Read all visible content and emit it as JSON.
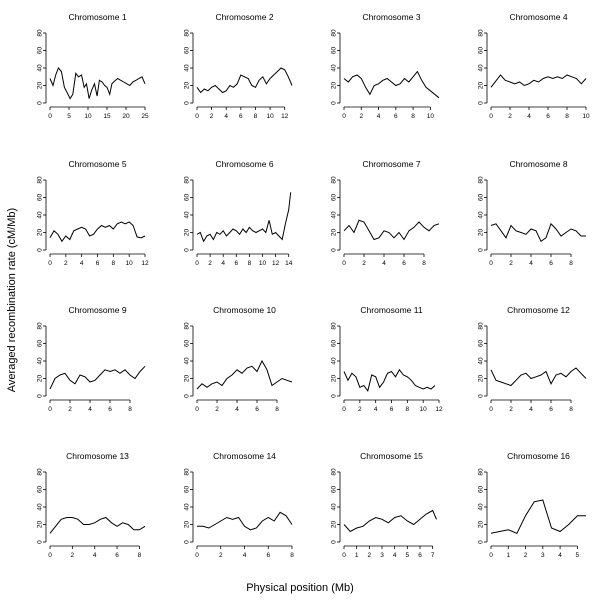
{
  "figure": {
    "xlabel": "Physical position (Mb)",
    "ylabel": "Averaged recombination rate (cM/Mb)"
  },
  "chart_data": [
    {
      "type": "line",
      "title": "Chromosome 1",
      "ylim": [
        0,
        80
      ],
      "yticks": [
        0,
        20,
        40,
        60,
        80
      ],
      "xlim": [
        0,
        25
      ],
      "xticks": [
        0,
        5,
        10,
        15,
        20,
        25
      ],
      "x": [
        0,
        0.8,
        1.5,
        2.2,
        3,
        3.8,
        4.5,
        5.3,
        6,
        6.8,
        7.5,
        8.3,
        9,
        9.6,
        10.3,
        11,
        11.7,
        12.4,
        13,
        13.7,
        14.4,
        15,
        15.7,
        16.3,
        17,
        17.8,
        18.6,
        19.4,
        20.2,
        21,
        21.8,
        22.6,
        23.4,
        24.2,
        25
      ],
      "y": [
        28,
        20,
        32,
        40,
        36,
        18,
        12,
        5,
        10,
        34,
        30,
        32,
        18,
        22,
        5,
        15,
        22,
        8,
        26,
        24,
        20,
        18,
        10,
        22,
        25,
        28,
        26,
        24,
        22,
        20,
        24,
        26,
        28,
        30,
        22
      ]
    },
    {
      "type": "line",
      "title": "Chromosome 2",
      "ylim": [
        0,
        80
      ],
      "yticks": [
        0,
        20,
        40,
        60,
        80
      ],
      "xlim": [
        0,
        13
      ],
      "xticks": [
        0,
        2,
        4,
        6,
        8,
        10,
        12
      ],
      "x": [
        0,
        0.5,
        1,
        1.5,
        2,
        2.5,
        3,
        3.5,
        4,
        4.5,
        5,
        5.5,
        6,
        6.5,
        7,
        7.5,
        8,
        8.5,
        9,
        9.5,
        10,
        10.5,
        11,
        11.5,
        12,
        12.5,
        13
      ],
      "y": [
        18,
        12,
        16,
        14,
        18,
        20,
        16,
        12,
        14,
        20,
        18,
        22,
        32,
        30,
        28,
        20,
        18,
        26,
        30,
        22,
        28,
        32,
        36,
        40,
        38,
        30,
        20
      ]
    },
    {
      "type": "line",
      "title": "Chromosome 3",
      "ylim": [
        0,
        80
      ],
      "yticks": [
        0,
        20,
        40,
        60,
        80
      ],
      "xlim": [
        0,
        11
      ],
      "xticks": [
        0,
        2,
        4,
        6,
        8,
        10
      ],
      "x": [
        0,
        0.5,
        1,
        1.5,
        2,
        2.5,
        3,
        3.5,
        4,
        4.5,
        5,
        5.5,
        6,
        6.5,
        7,
        7.5,
        8,
        8.5,
        9,
        9.5,
        10,
        10.5,
        11
      ],
      "y": [
        28,
        24,
        30,
        32,
        28,
        18,
        10,
        20,
        22,
        26,
        28,
        24,
        20,
        22,
        28,
        24,
        30,
        36,
        26,
        18,
        14,
        10,
        6
      ]
    },
    {
      "type": "line",
      "title": "Chromosome 4",
      "ylim": [
        0,
        80
      ],
      "yticks": [
        0,
        20,
        40,
        60,
        80
      ],
      "xlim": [
        0,
        10
      ],
      "xticks": [
        0,
        2,
        4,
        6,
        8,
        10
      ],
      "x": [
        0,
        0.5,
        1,
        1.5,
        2,
        2.5,
        3,
        3.5,
        4,
        4.5,
        5,
        5.5,
        6,
        6.5,
        7,
        7.5,
        8,
        8.5,
        9,
        9.5,
        10
      ],
      "y": [
        18,
        25,
        32,
        26,
        24,
        22,
        24,
        20,
        22,
        26,
        24,
        28,
        30,
        28,
        30,
        28,
        32,
        30,
        28,
        22,
        28
      ]
    },
    {
      "type": "line",
      "title": "Chromosome 5",
      "ylim": [
        0,
        80
      ],
      "yticks": [
        0,
        20,
        40,
        60,
        80
      ],
      "xlim": [
        0,
        12
      ],
      "xticks": [
        0,
        2,
        4,
        6,
        8,
        10,
        12
      ],
      "x": [
        0,
        0.5,
        1,
        1.5,
        2,
        2.5,
        3,
        3.5,
        4,
        4.5,
        5,
        5.5,
        6,
        6.5,
        7,
        7.5,
        8,
        8.5,
        9,
        9.5,
        10,
        10.5,
        11,
        11.5,
        12
      ],
      "y": [
        14,
        22,
        18,
        10,
        16,
        12,
        22,
        24,
        26,
        24,
        16,
        18,
        24,
        28,
        26,
        28,
        24,
        30,
        32,
        30,
        32,
        28,
        15,
        14,
        16
      ]
    },
    {
      "type": "line",
      "title": "Chromosome 6",
      "ylim": [
        0,
        80
      ],
      "yticks": [
        0,
        20,
        40,
        60,
        80
      ],
      "xlim": [
        0,
        14.5
      ],
      "xticks": [
        0,
        2,
        4,
        6,
        8,
        10,
        12,
        14
      ],
      "x": [
        0,
        0.5,
        1,
        1.5,
        2,
        2.5,
        3,
        3.5,
        4,
        4.5,
        5,
        5.5,
        6,
        6.5,
        7,
        7.5,
        8,
        8.5,
        9,
        9.5,
        10,
        10.5,
        11,
        11.5,
        12,
        12.5,
        13,
        13.5,
        14,
        14.3
      ],
      "y": [
        18,
        20,
        10,
        16,
        18,
        12,
        20,
        18,
        22,
        16,
        20,
        24,
        22,
        18,
        24,
        20,
        26,
        22,
        20,
        22,
        24,
        20,
        34,
        18,
        20,
        16,
        12,
        30,
        46,
        66
      ]
    },
    {
      "type": "line",
      "title": "Chromosome 7",
      "ylim": [
        0,
        80
      ],
      "yticks": [
        0,
        20,
        40,
        60,
        80
      ],
      "xlim": [
        0,
        9.5
      ],
      "xticks": [
        0,
        2,
        4,
        6,
        8
      ],
      "x": [
        0,
        0.5,
        1,
        1.5,
        2,
        2.5,
        3,
        3.5,
        4,
        4.5,
        5,
        5.5,
        6,
        6.5,
        7,
        7.5,
        8,
        8.5,
        9,
        9.5
      ],
      "y": [
        22,
        28,
        20,
        34,
        32,
        22,
        12,
        14,
        22,
        20,
        14,
        20,
        12,
        22,
        26,
        32,
        26,
        22,
        28,
        30
      ]
    },
    {
      "type": "line",
      "title": "Chromosome 8",
      "ylim": [
        0,
        80
      ],
      "yticks": [
        0,
        20,
        40,
        60,
        80
      ],
      "xlim": [
        0,
        9.5
      ],
      "xticks": [
        0,
        2,
        4,
        6,
        8
      ],
      "x": [
        0,
        0.5,
        1,
        1.5,
        2,
        2.5,
        3,
        3.5,
        4,
        4.5,
        5,
        5.5,
        6,
        6.5,
        7,
        7.5,
        8,
        8.5,
        9,
        9.5
      ],
      "y": [
        28,
        30,
        22,
        14,
        28,
        22,
        20,
        18,
        24,
        22,
        10,
        14,
        30,
        24,
        16,
        20,
        24,
        22,
        16,
        16
      ]
    },
    {
      "type": "line",
      "title": "Chromosome 9",
      "ylim": [
        0,
        80
      ],
      "yticks": [
        0,
        20,
        40,
        60,
        80
      ],
      "xlim": [
        0,
        9.5
      ],
      "xticks": [
        0,
        2,
        4,
        6,
        8
      ],
      "x": [
        0,
        0.5,
        1,
        1.5,
        2,
        2.5,
        3,
        3.5,
        4,
        4.5,
        5,
        5.5,
        6,
        6.5,
        7,
        7.5,
        8,
        8.5,
        9,
        9.5
      ],
      "y": [
        8,
        20,
        24,
        26,
        18,
        14,
        24,
        22,
        16,
        18,
        24,
        30,
        28,
        30,
        26,
        30,
        24,
        20,
        28,
        34
      ]
    },
    {
      "type": "line",
      "title": "Chromosome 10",
      "ylim": [
        0,
        80
      ],
      "yticks": [
        0,
        20,
        40,
        60,
        80
      ],
      "xlim": [
        0,
        9.5
      ],
      "xticks": [
        0,
        2,
        4,
        6,
        8
      ],
      "x": [
        0,
        0.5,
        1,
        1.5,
        2,
        2.5,
        3,
        3.5,
        4,
        4.5,
        5,
        5.5,
        6,
        6.5,
        7,
        7.5,
        8,
        8.5,
        9,
        9.5
      ],
      "y": [
        8,
        14,
        10,
        14,
        16,
        12,
        20,
        24,
        30,
        26,
        32,
        34,
        28,
        40,
        30,
        12,
        16,
        20,
        18,
        16
      ]
    },
    {
      "type": "line",
      "title": "Chromosome 11",
      "ylim": [
        0,
        80
      ],
      "yticks": [
        0,
        20,
        40,
        60,
        80
      ],
      "xlim": [
        0,
        12
      ],
      "xticks": [
        0,
        2,
        4,
        6,
        8,
        10,
        12
      ],
      "x": [
        0,
        0.5,
        1,
        1.5,
        2,
        2.5,
        3,
        3.5,
        4,
        4.5,
        5,
        5.5,
        6,
        6.5,
        7,
        7.5,
        8,
        8.5,
        9,
        9.5,
        10,
        10.5,
        11,
        11.5
      ],
      "y": [
        28,
        18,
        26,
        22,
        10,
        12,
        6,
        24,
        22,
        10,
        16,
        26,
        28,
        22,
        30,
        24,
        22,
        18,
        12,
        10,
        8,
        10,
        8,
        12
      ]
    },
    {
      "type": "line",
      "title": "Chromosome 12",
      "ylim": [
        0,
        80
      ],
      "yticks": [
        0,
        20,
        40,
        60,
        80
      ],
      "xlim": [
        0,
        9.5
      ],
      "xticks": [
        0,
        2,
        4,
        6,
        8
      ],
      "x": [
        0,
        0.5,
        1,
        1.5,
        2,
        2.5,
        3,
        3.5,
        4,
        4.5,
        5,
        5.5,
        6,
        6.5,
        7,
        7.5,
        8,
        8.5,
        9,
        9.5
      ],
      "y": [
        30,
        18,
        16,
        14,
        12,
        18,
        24,
        26,
        20,
        22,
        24,
        28,
        14,
        24,
        26,
        22,
        28,
        32,
        26,
        20
      ]
    },
    {
      "type": "line",
      "title": "Chromosome 13",
      "ylim": [
        0,
        80
      ],
      "yticks": [
        0,
        20,
        40,
        60,
        80
      ],
      "xlim": [
        0,
        8.5
      ],
      "xticks": [
        0,
        2,
        4,
        6,
        8
      ],
      "x": [
        0,
        0.5,
        1,
        1.5,
        2,
        2.5,
        3,
        3.5,
        4,
        4.5,
        5,
        5.5,
        6,
        6.5,
        7,
        7.5,
        8,
        8.5
      ],
      "y": [
        10,
        18,
        26,
        28,
        28,
        26,
        20,
        20,
        22,
        26,
        28,
        22,
        18,
        22,
        20,
        14,
        14,
        18
      ]
    },
    {
      "type": "line",
      "title": "Chromosome 14",
      "ylim": [
        0,
        80
      ],
      "yticks": [
        0,
        20,
        40,
        60,
        80
      ],
      "xlim": [
        0,
        8
      ],
      "xticks": [
        0,
        2,
        4,
        6,
        8
      ],
      "x": [
        0,
        0.5,
        1,
        1.5,
        2,
        2.5,
        3,
        3.5,
        4,
        4.5,
        5,
        5.5,
        6,
        6.5,
        7,
        7.5,
        8
      ],
      "y": [
        18,
        18,
        16,
        20,
        24,
        28,
        26,
        28,
        18,
        14,
        16,
        24,
        28,
        24,
        34,
        30,
        20
      ]
    },
    {
      "type": "line",
      "title": "Chromosome 15",
      "ylim": [
        0,
        80
      ],
      "yticks": [
        0,
        20,
        40,
        60,
        80
      ],
      "xlim": [
        0,
        7.5
      ],
      "xticks": [
        0,
        1,
        2,
        3,
        4,
        5,
        6,
        7
      ],
      "x": [
        0,
        0.5,
        1,
        1.5,
        2,
        2.5,
        3,
        3.5,
        4,
        4.5,
        5,
        5.5,
        6,
        6.5,
        7,
        7.3
      ],
      "y": [
        20,
        12,
        16,
        18,
        24,
        28,
        26,
        22,
        28,
        30,
        24,
        20,
        26,
        32,
        36,
        26
      ]
    },
    {
      "type": "line",
      "title": "Chromosome 16",
      "ylim": [
        0,
        80
      ],
      "yticks": [
        0,
        20,
        40,
        60,
        80
      ],
      "xlim": [
        0,
        5.5
      ],
      "xticks": [
        0,
        1,
        2,
        3,
        4,
        5
      ],
      "x": [
        0,
        0.5,
        1,
        1.5,
        2,
        2.5,
        3,
        3.5,
        4,
        4.5,
        5,
        5.5
      ],
      "y": [
        10,
        12,
        14,
        10,
        30,
        46,
        48,
        16,
        12,
        20,
        30,
        30
      ]
    }
  ]
}
